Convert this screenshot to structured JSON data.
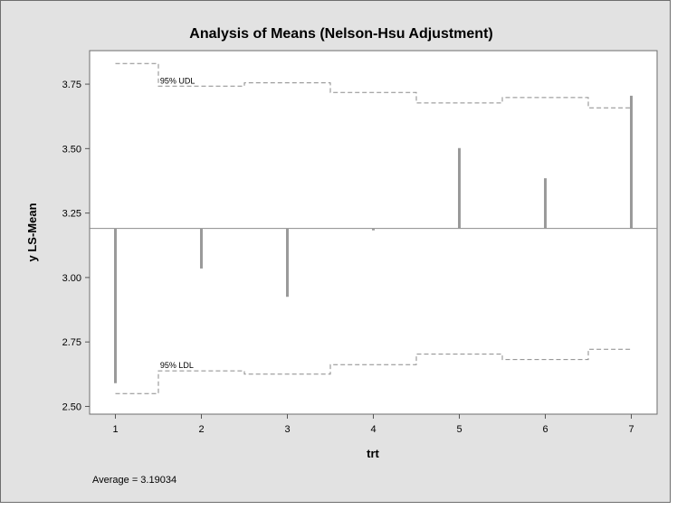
{
  "chart_data": {
    "type": "needle",
    "title": "Analysis of Means (Nelson-Hsu Adjustment)",
    "xlabel": "trt",
    "ylabel": "y LS-Mean",
    "categories": [
      "1",
      "2",
      "3",
      "4",
      "5",
      "6",
      "7"
    ],
    "values": [
      2.59,
      3.035,
      2.925,
      3.183,
      3.502,
      3.385,
      3.705
    ],
    "reference": 3.19034,
    "reference_label": "Average = 3.19034",
    "udl": [
      3.83,
      3.742,
      3.755,
      3.718,
      3.677,
      3.698,
      3.658
    ],
    "ldl": [
      2.55,
      2.638,
      2.625,
      2.662,
      2.703,
      2.682,
      2.722
    ],
    "udl_label": "95% UDL",
    "ldl_label": "95% LDL",
    "ylim": [
      2.47,
      3.88
    ],
    "yticks": [
      2.5,
      2.75,
      3.0,
      3.25,
      3.5,
      3.75
    ],
    "ytick_labels": [
      "2.50",
      "2.75",
      "3.00",
      "3.25",
      "3.50",
      "3.75"
    ],
    "xlim": [
      0.7,
      7.3
    ],
    "grid": false,
    "legend": "none",
    "colors": {
      "needle": "#9a9a9a",
      "reference": "#8c8c8c",
      "limits": "#8a8a8a",
      "background": "#e2e2e2",
      "plot_area": "#ffffff"
    }
  }
}
